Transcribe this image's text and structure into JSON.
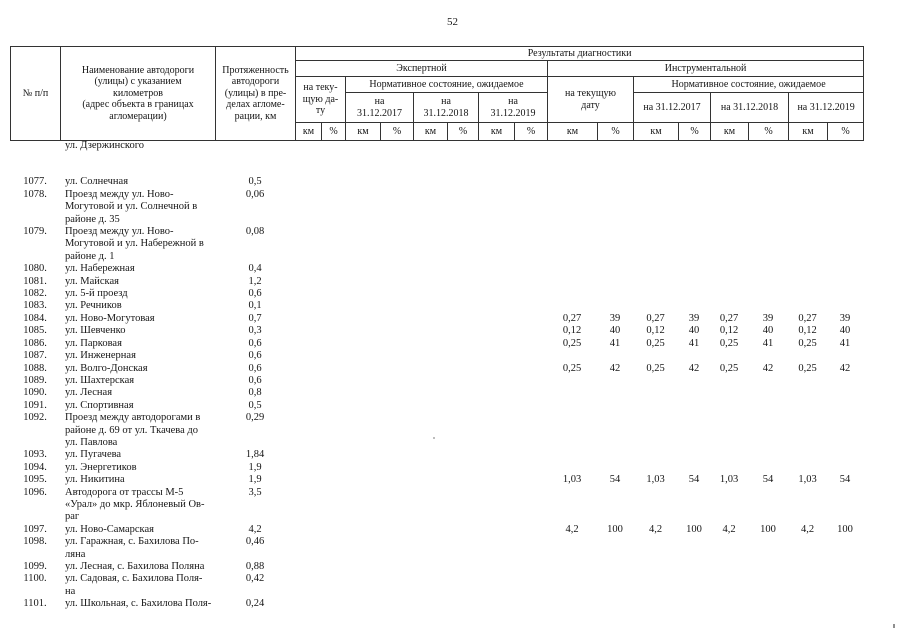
{
  "page": {
    "number": "52"
  },
  "table": {
    "header": {
      "col_num": "№ п/п",
      "col_name": "Наименование автодороги\n(улицы) с указанием\nкилометров\n(адрес объекта в границах\nагломерации)",
      "col_length": "Протяженность\nавтодороги\n(улицы) в пре-\nделах агломе-\nрации, км",
      "results": "Результаты диагностики",
      "expert": "Экспертной",
      "instrumental": "Инструментальной",
      "expert_current": "на теку-\nщую да-\nту",
      "instr_current": "на текущую\nдату",
      "normative_expert": "Нормативное состояние, ожидаемое",
      "normative_instr": "Нормативное состояние, ожидаемое",
      "expert_dates": [
        "на\n31.12.2017",
        "на\n31.12.2018",
        "на\n31.12.2019"
      ],
      "instr_dates": [
        "на 31.12.2017",
        "на 31.12.2018",
        "на 31.12.2019"
      ],
      "km": "км",
      "pct": "%"
    },
    "rows": [
      {
        "num": "",
        "name": "ул. Дзержинского",
        "len": "",
        "vals": null
      },
      {
        "spacer": true
      },
      {
        "num": "1077.",
        "name": "ул. Солнечная",
        "len": "0,5",
        "vals": null
      },
      {
        "num": "1078.",
        "name": "Проезд между ул. Ново-\nМогутовой и ул. Солнечной в\nрайоне д. 35",
        "len": "0,06",
        "vals": null
      },
      {
        "num": "1079.",
        "name": "Проезд между ул. Ново-\nМогутовой и ул. Набережной в\nрайоне д. 1",
        "len": "0,08",
        "vals": null
      },
      {
        "num": "1080.",
        "name": "ул. Набережная",
        "len": "0,4",
        "vals": null
      },
      {
        "num": "1081.",
        "name": "ул. Майская",
        "len": "1,2",
        "vals": null
      },
      {
        "num": "1082.",
        "name": "ул. 5-й проезд",
        "len": "0,6",
        "vals": null
      },
      {
        "num": "1083.",
        "name": "ул. Речников",
        "len": "0,1",
        "vals": null
      },
      {
        "num": "1084.",
        "name": "ул. Ново-Могутовая",
        "len": "0,7",
        "vals": [
          "0,27",
          "39",
          "0,27",
          "39",
          "0,27",
          "39",
          "0,27",
          "39"
        ]
      },
      {
        "num": "1085.",
        "name": "ул. Шевченко",
        "len": "0,3",
        "vals": [
          "0,12",
          "40",
          "0,12",
          "40",
          "0,12",
          "40",
          "0,12",
          "40"
        ]
      },
      {
        "num": "1086.",
        "name": "ул. Парковая",
        "len": "0,6",
        "vals": [
          "0,25",
          "41",
          "0,25",
          "41",
          "0,25",
          "41",
          "0,25",
          "41"
        ]
      },
      {
        "num": "1087.",
        "name": "ул. Инженерная",
        "len": "0,6",
        "vals": null
      },
      {
        "num": "1088.",
        "name": "ул. Волго-Донская",
        "len": "0,6",
        "vals": [
          "0,25",
          "42",
          "0,25",
          "42",
          "0,25",
          "42",
          "0,25",
          "42"
        ]
      },
      {
        "num": "1089.",
        "name": "ул. Шахтерская",
        "len": "0,6",
        "vals": null
      },
      {
        "num": "1090.",
        "name": "ул. Лесная",
        "len": "0,8",
        "vals": null
      },
      {
        "num": "1091.",
        "name": "ул. Спортивная",
        "len": "0,5",
        "vals": null
      },
      {
        "num": "1092.",
        "name": "Проезд между автодорогами в\nрайоне д. 69 от ул. Ткачева до\nул. Павлова",
        "len": "0,29",
        "vals": null
      },
      {
        "num": "1093.",
        "name": "ул. Пугачева",
        "len": "1,84",
        "vals": null
      },
      {
        "num": "1094.",
        "name": "ул. Энергетиков",
        "len": "1,9",
        "vals": null
      },
      {
        "num": "1095.",
        "name": "ул. Никитина",
        "len": "1,9",
        "vals": [
          "1,03",
          "54",
          "1,03",
          "54",
          "1,03",
          "54",
          "1,03",
          "54"
        ]
      },
      {
        "num": "1096.",
        "name": "Автодорога от трассы М-5\n«Урал» до мкр. Яблоневый Ов-\nраг",
        "len": "3,5",
        "vals": null
      },
      {
        "num": "1097.",
        "name": "ул. Ново-Самарская",
        "len": "4,2",
        "vals": [
          "4,2",
          "100",
          "4,2",
          "100",
          "4,2",
          "100",
          "4,2",
          "100"
        ]
      },
      {
        "num": "1098.",
        "name": "ул. Гаражная, с. Бахилова По-\nляна",
        "len": "0,46",
        "vals": null
      },
      {
        "num": "1099.",
        "name": "ул. Лесная, с. Бахилова Поляна",
        "len": "0,88",
        "vals": null
      },
      {
        "num": "1100.",
        "name": "ул. Садовая, с. Бахилова Поля-\nна",
        "len": "0,42",
        "vals": null
      },
      {
        "num": "1101.",
        "name": "ул. Школьная, с. Бахилова Поля-",
        "len": "0,24",
        "vals": null
      }
    ]
  }
}
